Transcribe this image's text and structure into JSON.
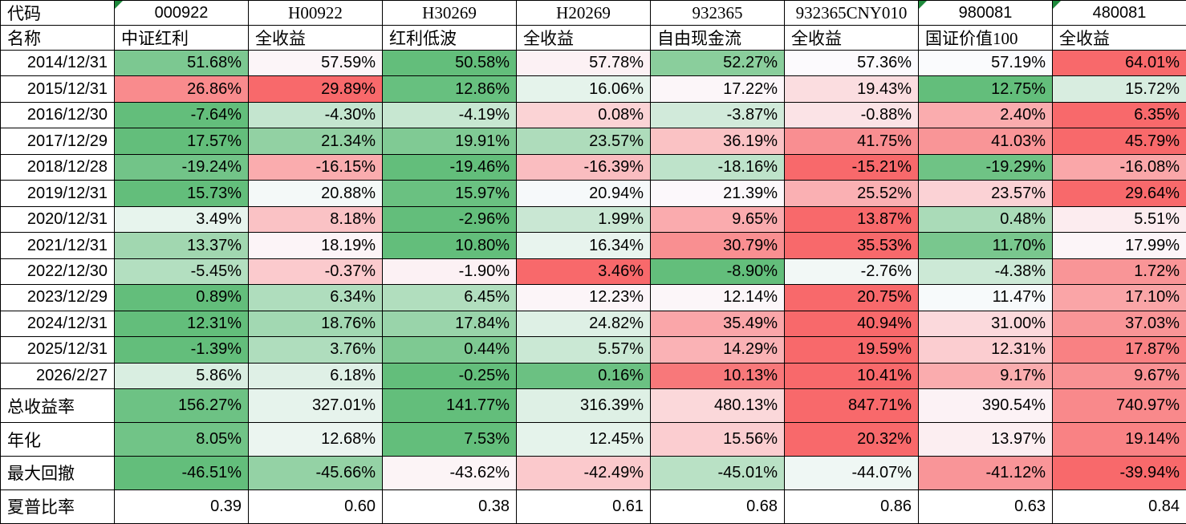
{
  "table": {
    "corner": {
      "code": "代码",
      "name": "名称"
    },
    "columns": [
      {
        "code": "000922",
        "name": "中证红利",
        "code_font": "sans",
        "flag": true
      },
      {
        "code": "H00922",
        "name": "全收益",
        "code_font": "serif",
        "flag": false
      },
      {
        "code": "H30269",
        "name": "红利低波",
        "code_font": "serif",
        "flag": false
      },
      {
        "code": "H20269",
        "name": "全收益",
        "code_font": "serif",
        "flag": false
      },
      {
        "code": "932365",
        "name": "自由现金流",
        "code_font": "serif",
        "flag": false
      },
      {
        "code": "932365CNY010",
        "name": "全收益",
        "code_font": "serif",
        "flag": false
      },
      {
        "code": "980081",
        "name": "国证价值100",
        "code_font": "sans",
        "flag": true
      },
      {
        "code": "480081",
        "name": "全收益",
        "code_font": "sans",
        "flag": true
      }
    ],
    "rows": [
      {
        "label": "2014/12/31",
        "format": "percent",
        "scale": true,
        "values": [
          51.68,
          57.59,
          50.58,
          57.78,
          52.27,
          57.36,
          57.19,
          64.01
        ]
      },
      {
        "label": "2015/12/31",
        "format": "percent",
        "scale": true,
        "values": [
          26.86,
          29.89,
          12.86,
          16.06,
          17.22,
          19.43,
          12.75,
          15.72
        ]
      },
      {
        "label": "2016/12/30",
        "format": "percent",
        "scale": true,
        "values": [
          -7.64,
          -4.3,
          -4.19,
          0.08,
          -3.87,
          -0.88,
          2.4,
          6.35
        ]
      },
      {
        "label": "2017/12/29",
        "format": "percent",
        "scale": true,
        "values": [
          17.57,
          21.34,
          19.91,
          23.57,
          36.19,
          41.75,
          41.03,
          45.79
        ]
      },
      {
        "label": "2018/12/28",
        "format": "percent",
        "scale": true,
        "values": [
          -19.24,
          -16.15,
          -19.46,
          -16.39,
          -18.16,
          -15.21,
          -19.29,
          -16.08
        ]
      },
      {
        "label": "2019/12/31",
        "format": "percent",
        "scale": true,
        "values": [
          15.73,
          20.88,
          15.97,
          20.94,
          21.39,
          25.52,
          23.57,
          29.64
        ]
      },
      {
        "label": "2020/12/31",
        "format": "percent",
        "scale": true,
        "values": [
          3.49,
          8.18,
          -2.96,
          1.99,
          9.65,
          13.87,
          0.48,
          5.51
        ]
      },
      {
        "label": "2021/12/31",
        "format": "percent",
        "scale": true,
        "values": [
          13.37,
          18.19,
          10.8,
          16.34,
          30.79,
          35.53,
          11.7,
          17.99
        ]
      },
      {
        "label": "2022/12/30",
        "format": "percent",
        "scale": true,
        "values": [
          -5.45,
          -0.37,
          -1.9,
          3.46,
          -8.9,
          -2.76,
          -4.38,
          1.72
        ]
      },
      {
        "label": "2023/12/29",
        "format": "percent",
        "scale": true,
        "values": [
          0.89,
          6.34,
          6.45,
          12.23,
          12.14,
          20.75,
          11.47,
          17.1
        ]
      },
      {
        "label": "2024/12/31",
        "format": "percent",
        "scale": true,
        "values": [
          12.31,
          18.76,
          17.84,
          24.82,
          35.49,
          40.94,
          31.0,
          37.03
        ]
      },
      {
        "label": "2025/12/31",
        "format": "percent",
        "scale": true,
        "values": [
          -1.39,
          3.76,
          0.44,
          5.57,
          14.29,
          19.59,
          12.31,
          17.87
        ]
      },
      {
        "label": "2026/2/27",
        "format": "percent",
        "scale": true,
        "values": [
          5.86,
          6.18,
          -0.25,
          0.16,
          10.13,
          10.41,
          9.17,
          9.67
        ]
      },
      {
        "label": "总收益率",
        "format": "percent",
        "scale": true,
        "values": [
          156.27,
          327.01,
          141.77,
          316.39,
          480.13,
          847.71,
          390.54,
          740.97
        ]
      },
      {
        "label": "年化",
        "format": "percent",
        "scale": true,
        "values": [
          8.05,
          12.68,
          7.53,
          12.45,
          15.56,
          20.32,
          13.97,
          19.14
        ]
      },
      {
        "label": "最大回撤",
        "format": "percent",
        "scale": true,
        "values": [
          -46.51,
          -45.66,
          -43.62,
          -42.49,
          -45.01,
          -44.07,
          -41.12,
          -39.94
        ]
      },
      {
        "label": "夏普比率",
        "format": "number",
        "scale": false,
        "values": [
          0.39,
          0.6,
          0.38,
          0.61,
          0.68,
          0.86,
          0.63,
          0.84
        ]
      }
    ],
    "colors": {
      "scale_min_green": "#63BE7B",
      "scale_mid_white": "#FCFCFF",
      "scale_max_red": "#F8696B",
      "flag_green": "#1e8a3c",
      "grid_black": "#000000"
    }
  }
}
